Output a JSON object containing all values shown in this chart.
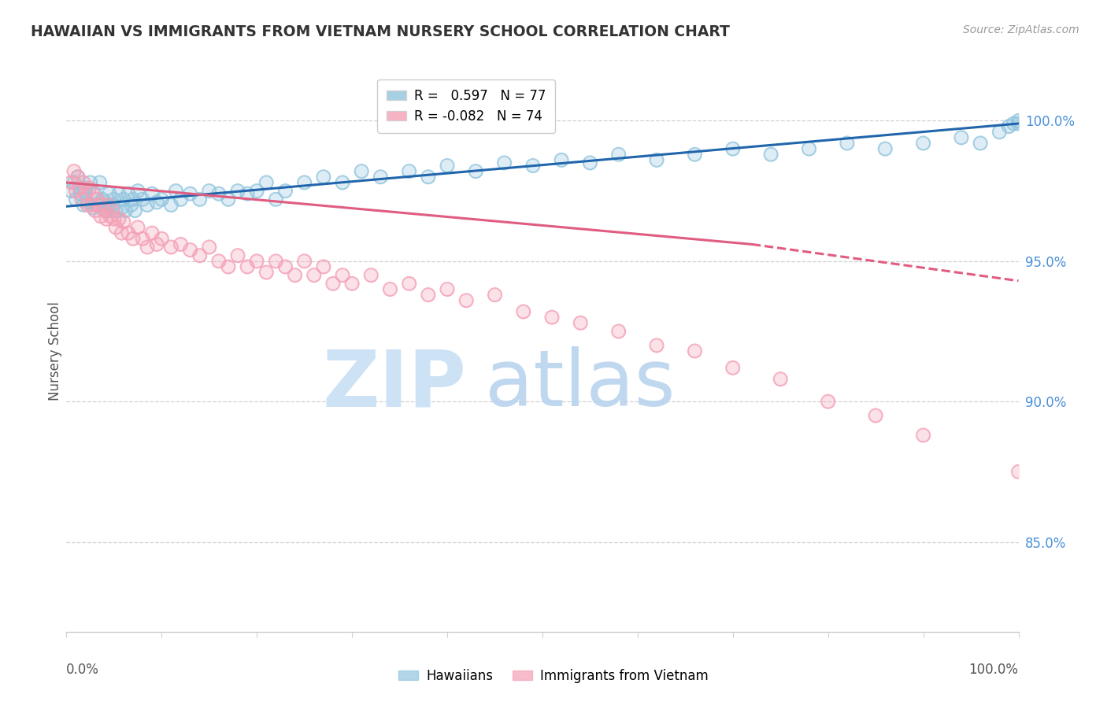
{
  "title": "HAWAIIAN VS IMMIGRANTS FROM VIETNAM NURSERY SCHOOL CORRELATION CHART",
  "source": "Source: ZipAtlas.com",
  "ylabel": "Nursery School",
  "xlim": [
    0.0,
    1.0
  ],
  "ylim": [
    0.818,
    1.018
  ],
  "yticks": [
    0.85,
    0.9,
    0.95,
    1.0
  ],
  "ytick_labels": [
    "85.0%",
    "90.0%",
    "95.0%",
    "100.0%"
  ],
  "legend_label_h": "R =   0.597   N = 77",
  "legend_label_v": "R = -0.082   N = 74",
  "hawaiians_color": "#92c5de",
  "vietnam_color": "#f4a0b5",
  "trend_hawaiians_color": "#2166ac",
  "trend_vietnam_color": "#e05c80",
  "hawaiians_x": [
    0.005,
    0.008,
    0.01,
    0.012,
    0.015,
    0.018,
    0.02,
    0.022,
    0.025,
    0.028,
    0.03,
    0.032,
    0.035,
    0.038,
    0.04,
    0.042,
    0.045,
    0.048,
    0.05,
    0.052,
    0.055,
    0.058,
    0.06,
    0.062,
    0.065,
    0.068,
    0.07,
    0.072,
    0.075,
    0.08,
    0.085,
    0.09,
    0.095,
    0.1,
    0.11,
    0.115,
    0.12,
    0.13,
    0.14,
    0.15,
    0.16,
    0.17,
    0.18,
    0.19,
    0.2,
    0.21,
    0.22,
    0.23,
    0.25,
    0.27,
    0.29,
    0.31,
    0.33,
    0.36,
    0.38,
    0.4,
    0.43,
    0.46,
    0.49,
    0.52,
    0.55,
    0.58,
    0.62,
    0.66,
    0.7,
    0.74,
    0.78,
    0.82,
    0.86,
    0.9,
    0.94,
    0.96,
    0.98,
    0.99,
    0.995,
    1.0,
    1.0
  ],
  "hawaiians_y": [
    0.975,
    0.978,
    0.972,
    0.98,
    0.974,
    0.97,
    0.976,
    0.971,
    0.978,
    0.969,
    0.974,
    0.97,
    0.978,
    0.972,
    0.971,
    0.968,
    0.974,
    0.97,
    0.972,
    0.968,
    0.974,
    0.969,
    0.972,
    0.968,
    0.974,
    0.97,
    0.972,
    0.968,
    0.975,
    0.972,
    0.97,
    0.974,
    0.971,
    0.972,
    0.97,
    0.975,
    0.972,
    0.974,
    0.972,
    0.975,
    0.974,
    0.972,
    0.975,
    0.974,
    0.975,
    0.978,
    0.972,
    0.975,
    0.978,
    0.98,
    0.978,
    0.982,
    0.98,
    0.982,
    0.98,
    0.984,
    0.982,
    0.985,
    0.984,
    0.986,
    0.985,
    0.988,
    0.986,
    0.988,
    0.99,
    0.988,
    0.99,
    0.992,
    0.99,
    0.992,
    0.994,
    0.992,
    0.996,
    0.998,
    0.999,
    1.0,
    0.999
  ],
  "vietnam_x": [
    0.005,
    0.008,
    0.01,
    0.012,
    0.014,
    0.016,
    0.018,
    0.02,
    0.022,
    0.024,
    0.026,
    0.028,
    0.03,
    0.032,
    0.034,
    0.036,
    0.038,
    0.04,
    0.042,
    0.044,
    0.046,
    0.048,
    0.05,
    0.052,
    0.055,
    0.058,
    0.06,
    0.065,
    0.07,
    0.075,
    0.08,
    0.085,
    0.09,
    0.095,
    0.1,
    0.11,
    0.12,
    0.13,
    0.14,
    0.15,
    0.16,
    0.17,
    0.18,
    0.19,
    0.2,
    0.21,
    0.22,
    0.23,
    0.24,
    0.25,
    0.26,
    0.27,
    0.28,
    0.29,
    0.3,
    0.32,
    0.34,
    0.36,
    0.38,
    0.4,
    0.42,
    0.45,
    0.48,
    0.51,
    0.54,
    0.58,
    0.62,
    0.66,
    0.7,
    0.75,
    0.8,
    0.85,
    0.9,
    1.0
  ],
  "vietnam_y": [
    0.978,
    0.982,
    0.975,
    0.98,
    0.976,
    0.972,
    0.978,
    0.974,
    0.97,
    0.976,
    0.97,
    0.974,
    0.968,
    0.972,
    0.97,
    0.966,
    0.97,
    0.968,
    0.965,
    0.97,
    0.966,
    0.968,
    0.965,
    0.962,
    0.965,
    0.96,
    0.964,
    0.96,
    0.958,
    0.962,
    0.958,
    0.955,
    0.96,
    0.956,
    0.958,
    0.955,
    0.956,
    0.954,
    0.952,
    0.955,
    0.95,
    0.948,
    0.952,
    0.948,
    0.95,
    0.946,
    0.95,
    0.948,
    0.945,
    0.95,
    0.945,
    0.948,
    0.942,
    0.945,
    0.942,
    0.945,
    0.94,
    0.942,
    0.938,
    0.94,
    0.936,
    0.938,
    0.932,
    0.93,
    0.928,
    0.925,
    0.92,
    0.918,
    0.912,
    0.908,
    0.9,
    0.895,
    0.888,
    0.875
  ],
  "trend_solid_end": 0.72,
  "grid_color": "#d0d0d0",
  "spine_color": "#d0d0d0",
  "watermark_zip_color": "#cde3f5",
  "watermark_atlas_color": "#b8d4ee"
}
